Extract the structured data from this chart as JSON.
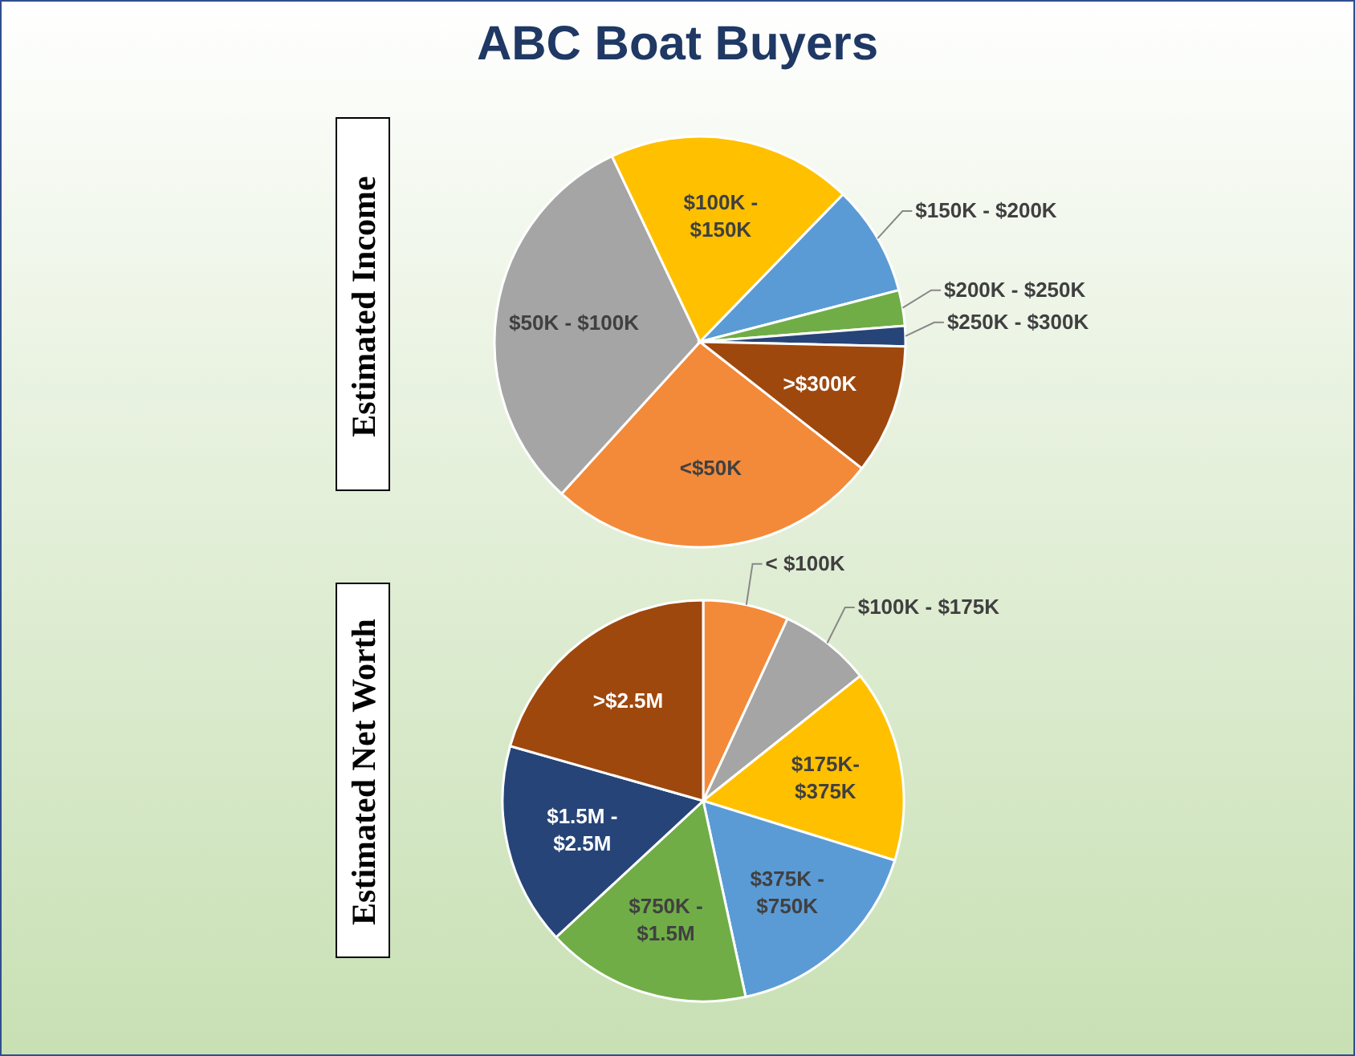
{
  "chart_data": [
    {
      "type": "pie",
      "title": "ABC Boat Buyers",
      "ylabel": "Estimated Income",
      "categories": [
        "<$50K",
        "$50K - $100K",
        "$100K - $150K",
        "$150K - $200K",
        "$200K - $250K",
        "$250K - $300K",
        ">$300K"
      ],
      "values": [
        26.2,
        31.2,
        19.3,
        8.7,
        2.8,
        1.6,
        10.2
      ],
      "colors": [
        "#f28a3a",
        "#a5a5a5",
        "#ffc000",
        "#5b9bd5",
        "#70ad47",
        "#264478",
        "#9e480e"
      ]
    },
    {
      "type": "pie",
      "ylabel": "Estimated Net Worth",
      "categories": [
        "< $100K",
        "$100K - $175K",
        "$175K-$375K",
        "$375K - $750K",
        "$750K - $1.5M",
        "$1.5M - $2.5M",
        ">$2.5M"
      ],
      "values": [
        6.9,
        7.4,
        15.5,
        16.8,
        16.5,
        16.3,
        20.6
      ],
      "colors": [
        "#f28a3a",
        "#a5a5a5",
        "#ffc000",
        "#5b9bd5",
        "#70ad47",
        "#264478",
        "#9e480e"
      ]
    }
  ]
}
